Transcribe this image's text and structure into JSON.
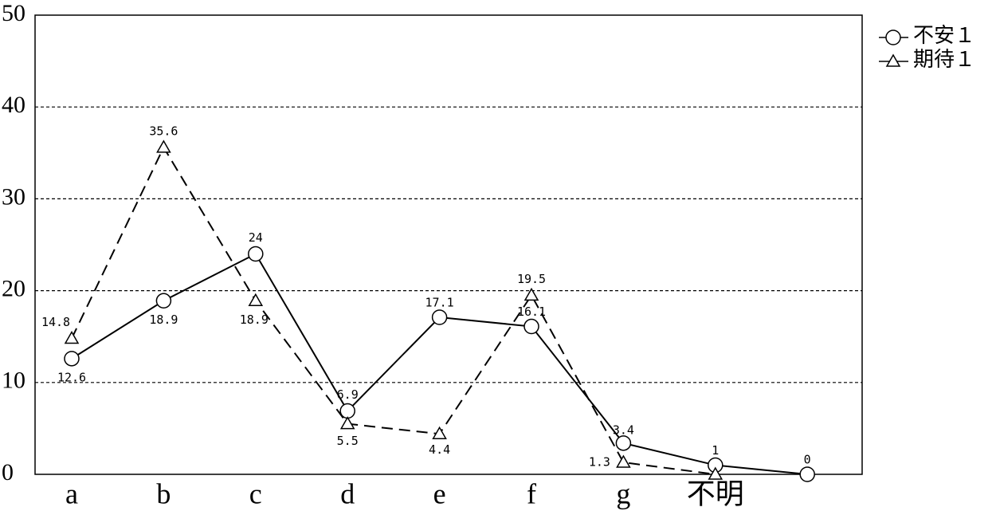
{
  "chart_data": {
    "type": "line",
    "categories": [
      "a",
      "b",
      "c",
      "d",
      "e",
      "f",
      "g",
      "不明",
      null
    ],
    "series": [
      {
        "name": "不安１",
        "color": "#000000",
        "line_style": "solid",
        "marker": "circle",
        "values": [
          12.6,
          18.9,
          24,
          6.9,
          17.1,
          16.1,
          3.4,
          1,
          0
        ]
      },
      {
        "name": "期待１",
        "color": "#000000",
        "line_style": "dashed",
        "marker": "triangle",
        "values": [
          14.8,
          35.6,
          18.9,
          5.5,
          4.4,
          19.5,
          1.3,
          0,
          null
        ]
      }
    ],
    "ylim": [
      0,
      50
    ],
    "yticks": [
      0,
      10,
      20,
      30,
      40,
      50
    ],
    "grid": true,
    "legend": "upper right outside"
  }
}
